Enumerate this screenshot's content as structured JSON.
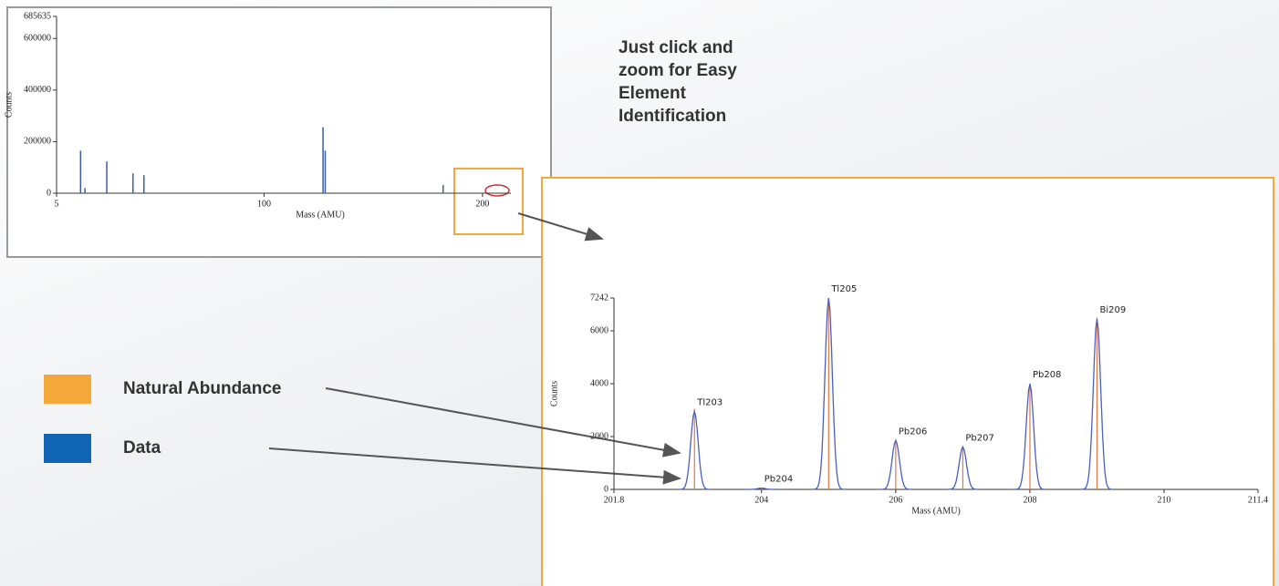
{
  "callout": "Just click and zoom for Easy Element Identification",
  "chart_data": [
    {
      "type": "bar",
      "xlabel": "Mass (AMU)",
      "ylabel": "Counts",
      "color": "#3a5ea8",
      "x": [
        16,
        18,
        28,
        40,
        45,
        127,
        128,
        182
      ],
      "values": [
        165000,
        20000,
        123000,
        77000,
        70000,
        256000,
        165000,
        32000
      ],
      "xlim": [
        5,
        213
      ],
      "xticks": [
        5,
        100,
        200
      ],
      "ylim": [
        0,
        685635
      ],
      "yticks": [
        0,
        200000,
        400000,
        600000,
        685635
      ]
    },
    {
      "type": "line",
      "xlabel": "Mass (AMU)",
      "ylabel": "Counts",
      "x": [
        203,
        204,
        205,
        206,
        207,
        208,
        209
      ],
      "labels": [
        "Tl203",
        "Pb204",
        "Tl205",
        "Pb206",
        "Pb207",
        "Pb208",
        "Bi209"
      ],
      "series": [
        {
          "name": "Natural Abundance",
          "color": "#e0784a",
          "legend_color": "#f5a83a",
          "values": [
            3050,
            60,
            7150,
            1900,
            1650,
            3950,
            6500
          ]
        },
        {
          "name": "Data",
          "color": "#4a5fc1",
          "legend_color": "#0f64b4",
          "values": [
            2950,
            50,
            7242,
            1850,
            1600,
            4000,
            6450
          ]
        }
      ],
      "xlim": [
        201.8,
        211.4
      ],
      "xticks": [
        201.8,
        204,
        206,
        208,
        210,
        211.4
      ],
      "ylim": [
        0,
        7242
      ],
      "yticks": [
        0,
        2000,
        4000,
        6000,
        7242
      ]
    }
  ]
}
